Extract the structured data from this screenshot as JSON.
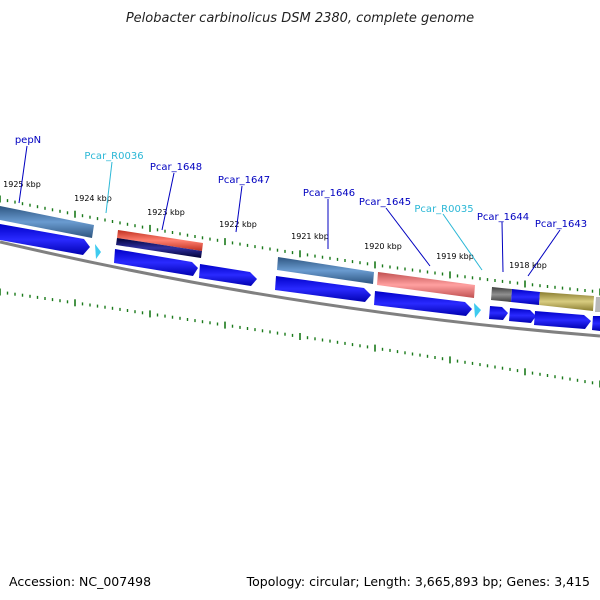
{
  "title": "Pelobacter carbinolicus DSM 2380, complete genome",
  "footer": {
    "accession": "Accession: NC_007498",
    "summary": "Topology: circular; Length: 3,665,893 bp; Genes: 3,415"
  },
  "gene_labels": [
    {
      "name": "pepN",
      "color": "#0000c0"
    },
    {
      "name": "Pcar_R0036",
      "color": "#2ab7d6"
    },
    {
      "name": "Pcar_1648",
      "color": "#0000c0"
    },
    {
      "name": "Pcar_1647",
      "color": "#0000c0"
    },
    {
      "name": "Pcar_1646",
      "color": "#0000c0"
    },
    {
      "name": "Pcar_1645",
      "color": "#0000c0"
    },
    {
      "name": "Pcar_R0035",
      "color": "#2ab7d6"
    },
    {
      "name": "Pcar_1644",
      "color": "#0000c0"
    },
    {
      "name": "Pcar_1643",
      "color": "#0000c0"
    }
  ],
  "kbp_labels": [
    "1925 kbp",
    "1924 kbp",
    "1923 kbp",
    "1922 kbp",
    "1921 kbp",
    "1920 kbp",
    "1919 kbp",
    "1918 kbp"
  ],
  "colors": {
    "cds": "#0000ee",
    "rna": "#3ecbef",
    "tick": "#1a7a1a",
    "backbone": "#808080",
    "feature_steelblue": "#4a7fb3",
    "feature_salmon": "#f08080",
    "feature_red": "#f25a4a",
    "feature_navy": "#000066",
    "feature_gray": "#707070",
    "feature_olive": "#b8ac5c"
  }
}
